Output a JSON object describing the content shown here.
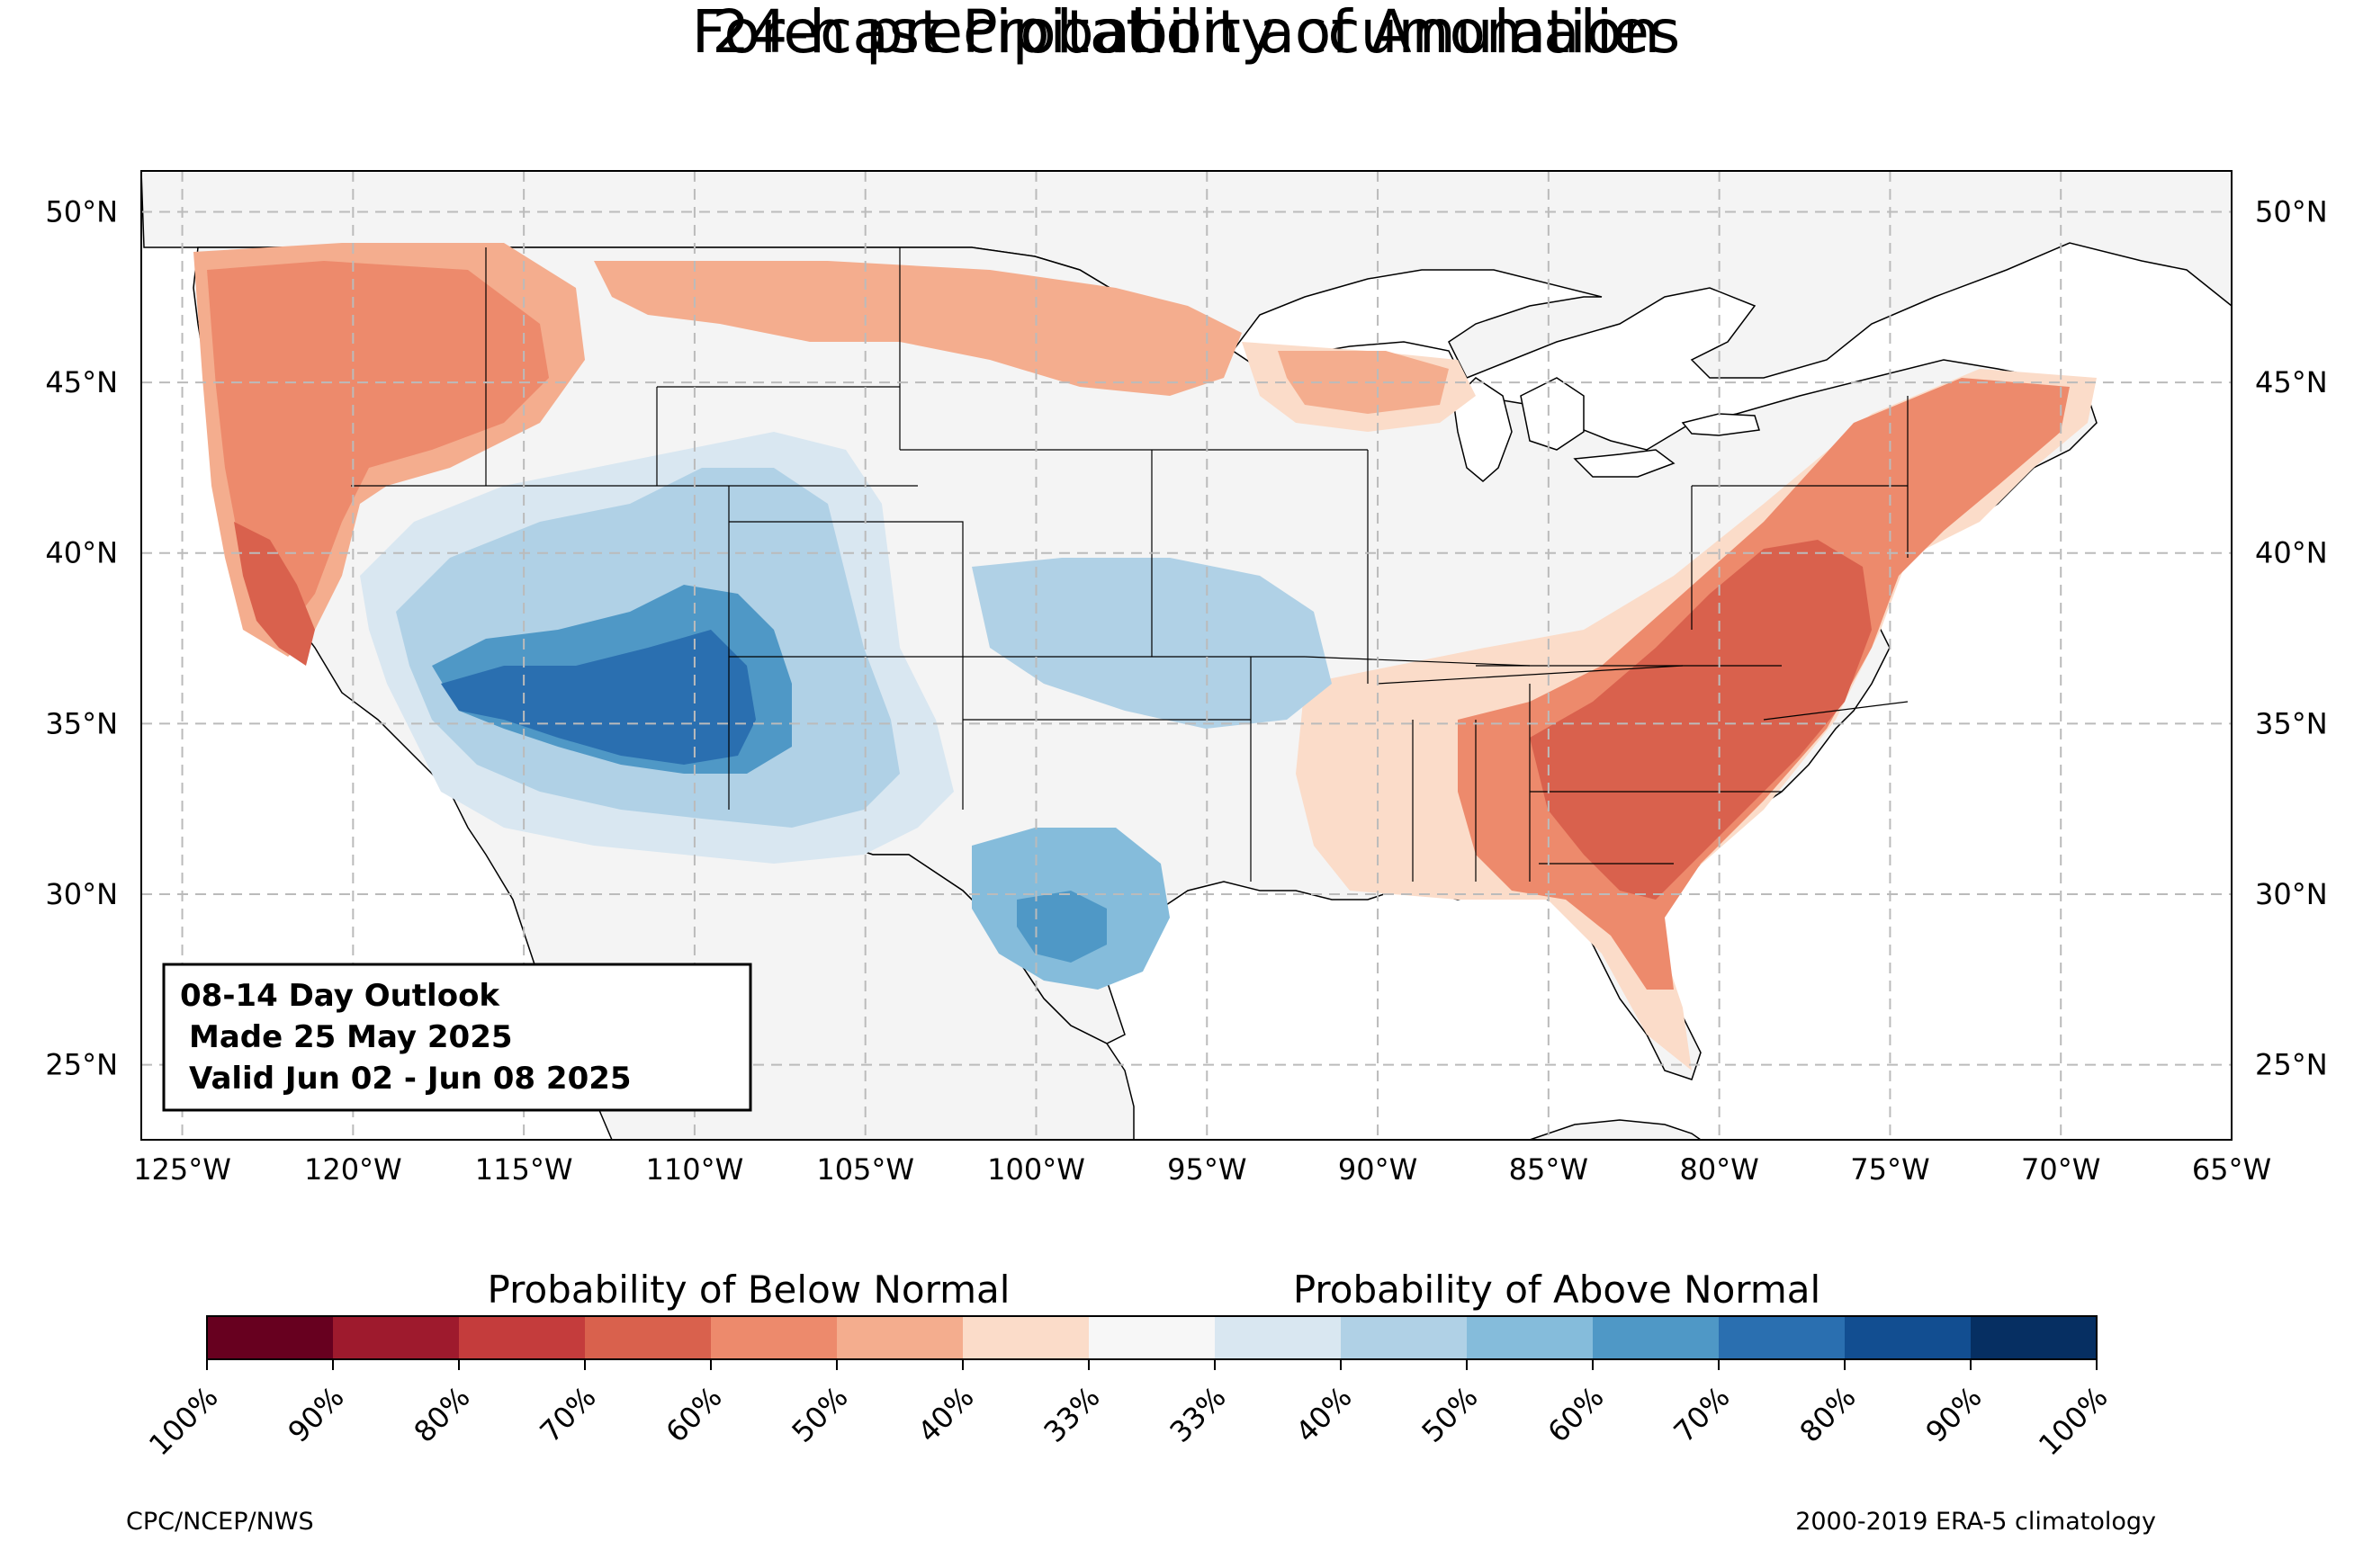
{
  "title": {
    "line1": "Forecast Probability of Anomalies",
    "line2": "24-h precipitation accumulation"
  },
  "info_box": {
    "line1": "08-14 Day Outlook",
    "line2": "Made 25 May 2025",
    "line3": "Valid Jun 02 - Jun 08 2025"
  },
  "axes": {
    "lon_range": [
      -126.2,
      -65.0
    ],
    "lat_range": [
      22.8,
      51.2
    ],
    "lon_ticks": [
      {
        "value": -125,
        "label": "125°W"
      },
      {
        "value": -120,
        "label": "120°W"
      },
      {
        "value": -115,
        "label": "115°W"
      },
      {
        "value": -110,
        "label": "110°W"
      },
      {
        "value": -105,
        "label": "105°W"
      },
      {
        "value": -100,
        "label": "100°W"
      },
      {
        "value": -95,
        "label": "95°W"
      },
      {
        "value": -90,
        "label": "90°W"
      },
      {
        "value": -85,
        "label": "85°W"
      },
      {
        "value": -80,
        "label": "80°W"
      },
      {
        "value": -75,
        "label": "75°W"
      },
      {
        "value": -70,
        "label": "70°W"
      },
      {
        "value": -65,
        "label": "65°W"
      }
    ],
    "lat_ticks": [
      {
        "value": 25,
        "label": "25°N"
      },
      {
        "value": 30,
        "label": "30°N"
      },
      {
        "value": 35,
        "label": "35°N"
      },
      {
        "value": 40,
        "label": "40°N"
      },
      {
        "value": 45,
        "label": "45°N"
      },
      {
        "value": 50,
        "label": "50°N"
      }
    ],
    "gridlines": true
  },
  "colorbar": {
    "below_label": "Probability of Below Normal",
    "above_label": "Probability of Above Normal",
    "colors": [
      "#67001f",
      "#9e1a2d",
      "#c43c3c",
      "#d9614d",
      "#ed8a6c",
      "#f4ad8e",
      "#fbdcc9",
      "#f7f7f7",
      "#d9e7f1",
      "#b0d1e6",
      "#85bcdb",
      "#4f98c6",
      "#2a6fb0",
      "#124e91",
      "#062f62"
    ],
    "ticks": [
      "100%",
      "90%",
      "80%",
      "70%",
      "60%",
      "50%",
      "40%",
      "33%",
      "33%",
      "40%",
      "50%",
      "60%",
      "70%",
      "80%",
      "90%",
      "100%"
    ]
  },
  "footer": {
    "left": "CPC/NCEP/NWS",
    "right": "2000-2019 ERA-5 climatology"
  },
  "colors": {
    "land": "#f4f4f4",
    "below_70": "#d9614d",
    "below_60": "#ed8a6c",
    "below_50": "#f4ad8e",
    "below_40": "#fbdcc9",
    "above_40": "#d9e7f1",
    "above_50": "#b0d1e6",
    "above_60": "#85bcdb",
    "above_70": "#4f98c6",
    "above_80": "#2a6fb0",
    "above_90": "#124e91"
  }
}
